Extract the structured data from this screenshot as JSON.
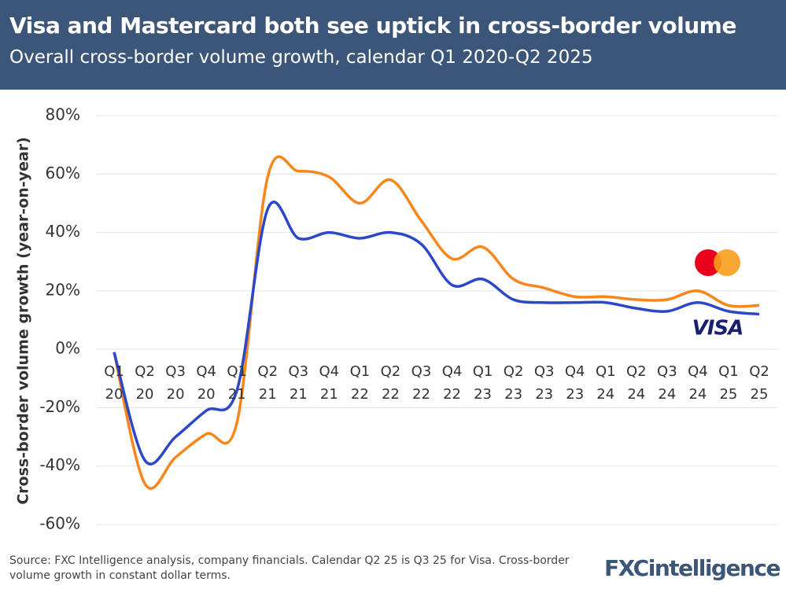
{
  "chart_data": {
    "type": "line",
    "title": "Visa and Mastercard both see uptick in cross-border volume",
    "subtitle": "Overall cross-border volume growth, calendar Q1 2020-Q2 2025",
    "y_label": "Cross-border volume growth (year-on-year)",
    "source": "Source: FXC Intelligence analysis, company financials. Calendar Q2 25 is Q3 25 for Visa. Cross-border volume growth in constant dollar terms.",
    "brand": "FXCintelligence",
    "categories": [
      "Q1 20",
      "Q2 20",
      "Q3 20",
      "Q4 20",
      "Q1 21",
      "Q2 21",
      "Q3 21",
      "Q4 21",
      "Q1 22",
      "Q2 22",
      "Q3 22",
      "Q4 22",
      "Q1 23",
      "Q2 23",
      "Q3 23",
      "Q4 23",
      "Q1 24",
      "Q2 24",
      "Q3 24",
      "Q4 24",
      "Q1 25",
      "Q2 25"
    ],
    "series": [
      {
        "color": "#f7861b",
        "values": [
          -1,
          -46,
          -37,
          -29,
          -25,
          59,
          61,
          59,
          50,
          58,
          44,
          31,
          35,
          24,
          21,
          18,
          18,
          17,
          17,
          20,
          15,
          15
        ]
      },
      {
        "name": "VISA",
        "color": "#2c48c8",
        "values": [
          -1,
          -38,
          -30,
          -21,
          -14,
          48,
          38,
          40,
          38,
          40,
          36,
          22,
          24,
          17,
          16,
          16,
          16,
          14,
          13,
          16,
          13,
          12
        ]
      }
    ],
    "ylim": [
      -60,
      80
    ],
    "yticks": [
      {
        "value": -60,
        "label": "-60%"
      },
      {
        "value": -40,
        "label": "-40%"
      },
      {
        "value": -20,
        "label": "-20%"
      },
      {
        "value": 0,
        "label": "0%"
      },
      {
        "value": 20,
        "label": "20%"
      },
      {
        "value": 40,
        "label": "40%"
      },
      {
        "value": 60,
        "label": "60%"
      },
      {
        "value": 80,
        "label": "80%"
      }
    ],
    "grid": true
  }
}
